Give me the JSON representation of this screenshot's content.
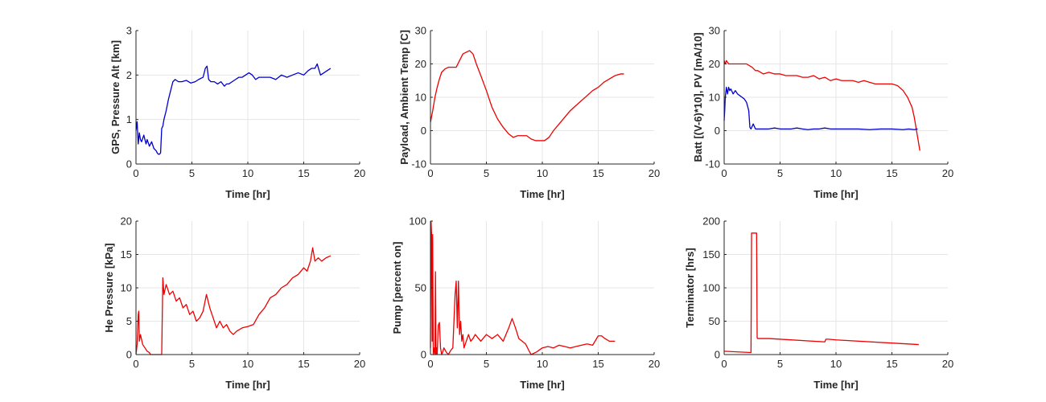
{
  "figure": {
    "charts": [
      {
        "id": "gps_alt",
        "ylabel": "GPS, Pressure Alt [km]",
        "xlabel": "Time [hr]"
      },
      {
        "id": "payload_temp",
        "ylabel": "Payload, Ambient Temp [C]",
        "xlabel": "Time [hr]"
      },
      {
        "id": "batt_pv",
        "ylabel": "Batt [(V-6)*10], PV [mA/10]",
        "xlabel": "Time [hr]"
      },
      {
        "id": "he_pressure",
        "ylabel": "He Pressure [kPa]",
        "xlabel": "Time [hr]"
      },
      {
        "id": "pump",
        "ylabel": "Pump [percent on]",
        "xlabel": "Time [hr]"
      },
      {
        "id": "terminator",
        "ylabel": "Terminator [hrs]",
        "xlabel": "Time [hr]"
      }
    ]
  },
  "chart_data": [
    {
      "type": "line",
      "xlabel": "Time [hr]",
      "ylabel": "GPS, Pressure Alt [km]",
      "xlim": [
        0,
        20
      ],
      "ylim": [
        0,
        3
      ],
      "xticks": [
        0,
        5,
        10,
        15,
        20
      ],
      "yticks": [
        0,
        1,
        2,
        3
      ],
      "grid": true,
      "series": [
        {
          "color": "#0000cc",
          "x": [
            0,
            0.1,
            0.2,
            0.3,
            0.4,
            0.5,
            0.7,
            0.9,
            1.0,
            1.2,
            1.4,
            1.6,
            1.8,
            1.9,
            2.0,
            2.1,
            2.2,
            2.3,
            2.4,
            2.5,
            2.7,
            2.9,
            3.1,
            3.3,
            3.5,
            3.8,
            4.1,
            4.5,
            4.9,
            5.3,
            5.6,
            6.0,
            6.2,
            6.35,
            6.5,
            6.7,
            7.0,
            7.3,
            7.6,
            7.9,
            8.1,
            8.3,
            8.6,
            8.9,
            9.2,
            9.5,
            9.8,
            10.1,
            10.4,
            10.7,
            11.0,
            11.5,
            12.0,
            12.5,
            13.0,
            13.5,
            14.0,
            14.5,
            15.0,
            15.4,
            15.7,
            16.0,
            16.2,
            16.5,
            16.8,
            17.1,
            17.4
          ],
          "y": [
            0.75,
            0.95,
            0.45,
            0.7,
            0.55,
            0.5,
            0.65,
            0.45,
            0.55,
            0.4,
            0.5,
            0.35,
            0.3,
            0.25,
            0.22,
            0.22,
            0.25,
            0.8,
            0.85,
            1.0,
            1.2,
            1.45,
            1.65,
            1.85,
            1.9,
            1.85,
            1.85,
            1.88,
            1.82,
            1.85,
            1.9,
            1.95,
            2.15,
            2.2,
            1.9,
            1.85,
            1.85,
            1.8,
            1.85,
            1.75,
            1.8,
            1.8,
            1.85,
            1.9,
            1.95,
            1.95,
            2.0,
            2.05,
            2.0,
            1.9,
            1.95,
            1.95,
            1.95,
            1.9,
            2.0,
            1.95,
            2.0,
            2.05,
            2.0,
            2.1,
            2.15,
            2.15,
            2.25,
            2.0,
            2.05,
            2.1,
            2.15
          ]
        }
      ]
    },
    {
      "type": "line",
      "xlabel": "Time [hr]",
      "ylabel": "Payload, Ambient Temp [C]",
      "xlim": [
        0,
        20
      ],
      "ylim": [
        -10,
        30
      ],
      "xticks": [
        0,
        5,
        10,
        15,
        20
      ],
      "yticks": [
        -10,
        0,
        10,
        20,
        30
      ],
      "grid": true,
      "series": [
        {
          "color": "#ee0000",
          "x": [
            0,
            0.2,
            0.4,
            0.6,
            0.8,
            1.0,
            1.3,
            1.6,
            2.0,
            2.3,
            2.6,
            2.9,
            3.2,
            3.5,
            3.8,
            4.1,
            4.5,
            5.0,
            5.5,
            6.0,
            6.5,
            7.0,
            7.4,
            7.8,
            8.2,
            8.6,
            9.0,
            9.4,
            9.8,
            10.2,
            10.6,
            11.0,
            11.5,
            12.0,
            12.5,
            13.0,
            13.5,
            14.0,
            14.5,
            15.0,
            15.5,
            16.0,
            16.5,
            17.0,
            17.3
          ],
          "y": [
            2.5,
            6,
            10,
            13,
            15.5,
            17.5,
            18.5,
            19,
            19,
            19,
            21,
            23,
            23.5,
            24,
            23,
            20,
            16.5,
            12,
            7,
            3.5,
            1,
            -1,
            -2,
            -1.5,
            -1.5,
            -1.5,
            -2.5,
            -3,
            -3,
            -3,
            -2,
            0,
            2,
            4,
            6,
            7.5,
            9,
            10.5,
            12,
            13,
            14.5,
            15.5,
            16.5,
            17,
            17
          ]
        }
      ]
    },
    {
      "type": "line",
      "xlabel": "Time [hr]",
      "ylabel": "Batt [(V-6)*10], PV [mA/10]",
      "xlim": [
        0,
        20
      ],
      "ylim": [
        -10,
        30
      ],
      "xticks": [
        0,
        5,
        10,
        15,
        20
      ],
      "yticks": [
        -10,
        0,
        10,
        20,
        30
      ],
      "grid": true,
      "series": [
        {
          "color": "#ee0000",
          "x": [
            0,
            0.1,
            0.2,
            0.4,
            0.6,
            1.0,
            1.5,
            2.0,
            2.5,
            2.8,
            3.0,
            3.5,
            4.0,
            4.5,
            5.0,
            5.5,
            6.0,
            6.5,
            7.0,
            7.5,
            8.0,
            8.5,
            9.0,
            9.5,
            10.0,
            10.5,
            11.0,
            11.5,
            12.0,
            12.5,
            13.0,
            13.5,
            14.0,
            14.5,
            15.0,
            15.5,
            16.0,
            16.4,
            16.8,
            17.0,
            17.2,
            17.4,
            17.5
          ],
          "y": [
            21,
            20,
            21,
            20,
            20,
            20,
            20,
            20,
            19,
            18,
            18,
            17,
            17.5,
            17,
            17,
            16.5,
            16.5,
            16.5,
            16,
            16,
            16.5,
            15.5,
            16,
            15,
            15.5,
            15,
            15,
            15,
            14.5,
            15,
            14.5,
            14,
            14,
            14,
            14,
            13.5,
            12,
            10,
            7,
            4,
            0,
            -4,
            -6
          ]
        },
        {
          "color": "#0000cc",
          "x": [
            0,
            0.05,
            0.1,
            0.2,
            0.3,
            0.4,
            0.5,
            0.6,
            0.8,
            1.0,
            1.2,
            1.4,
            1.6,
            1.8,
            2.0,
            2.2,
            2.3,
            2.4,
            2.6,
            2.8,
            3.0,
            3.5,
            4.0,
            4.5,
            5.0,
            5.5,
            6.0,
            6.5,
            7.0,
            7.5,
            8.0,
            8.5,
            9.0,
            9.5,
            10.0,
            11.0,
            12.0,
            13.0,
            14.0,
            15.0,
            16.0,
            16.5,
            17.0,
            17.3
          ],
          "y": [
            3,
            6,
            10,
            13,
            11,
            13,
            12,
            12.5,
            11,
            12,
            11,
            10.5,
            10,
            9.5,
            8.5,
            6,
            1,
            0.5,
            2,
            0.5,
            0.5,
            0.5,
            0.5,
            0.8,
            0.5,
            0.5,
            0.5,
            0.8,
            0.5,
            0.3,
            0.5,
            0.5,
            0.8,
            0.5,
            0.5,
            0.5,
            0.5,
            0.3,
            0.5,
            0.5,
            0.3,
            0.5,
            0.3,
            0.5
          ]
        }
      ]
    },
    {
      "type": "line",
      "xlabel": "Time [hr]",
      "ylabel": "He Pressure [kPa]",
      "xlim": [
        0,
        20
      ],
      "ylim": [
        0,
        20
      ],
      "xticks": [
        0,
        5,
        10,
        15,
        20
      ],
      "yticks": [
        0,
        5,
        10,
        15,
        20
      ],
      "grid": true,
      "series": [
        {
          "color": "#ee0000",
          "x": [
            0,
            0.1,
            0.2,
            0.25,
            0.3,
            0.4,
            0.6,
            0.8,
            1.0,
            1.2,
            1.3,
            2.0,
            2.3,
            2.4,
            2.5,
            2.7,
            3.0,
            3.3,
            3.6,
            3.9,
            4.2,
            4.5,
            4.8,
            5.1,
            5.4,
            5.7,
            6.0,
            6.3,
            6.6,
            6.9,
            7.2,
            7.5,
            7.8,
            8.1,
            8.4,
            8.7,
            9.0,
            9.5,
            10.0,
            10.5,
            11.0,
            11.5,
            12.0,
            12.5,
            13.0,
            13.5,
            14.0,
            14.5,
            15.0,
            15.3,
            15.6,
            15.8,
            16.0,
            16.3,
            16.6,
            17.0,
            17.4
          ],
          "y": [
            0,
            1.5,
            6,
            6.5,
            2,
            3,
            1.5,
            1,
            0.5,
            0.3,
            0,
            0,
            0,
            11.5,
            9,
            10.5,
            9,
            9.5,
            8,
            8.5,
            7,
            7.5,
            6,
            6.5,
            5,
            5.5,
            6.5,
            9,
            7,
            5.5,
            4,
            5,
            4,
            4.5,
            3.5,
            3,
            3.5,
            4,
            4.2,
            4.5,
            6,
            7,
            8.5,
            9,
            10,
            10.5,
            11.5,
            12,
            13,
            12.5,
            14,
            16,
            14,
            14.5,
            14,
            14.5,
            14.8
          ]
        }
      ]
    },
    {
      "type": "line",
      "xlabel": "Time [hr]",
      "ylabel": "Pump [percent on]",
      "xlim": [
        0,
        20
      ],
      "ylim": [
        0,
        100
      ],
      "xticks": [
        0,
        5,
        10,
        15,
        20
      ],
      "yticks": [
        0,
        50,
        100
      ],
      "grid": true,
      "series": [
        {
          "color": "#ee0000",
          "x": [
            0,
            0.05,
            0.1,
            0.15,
            0.2,
            0.25,
            0.3,
            0.35,
            0.4,
            0.45,
            0.5,
            0.55,
            0.6,
            0.7,
            0.8,
            0.9,
            1.0,
            1.1,
            1.2,
            1.4,
            1.6,
            1.8,
            2.0,
            2.2,
            2.3,
            2.4,
            2.5,
            2.6,
            2.7,
            2.8,
            2.9,
            3.0,
            3.2,
            3.4,
            3.6,
            3.8,
            4.0,
            4.5,
            5.0,
            5.5,
            6.0,
            6.5,
            7.0,
            7.3,
            7.6,
            7.9,
            8.2,
            8.5,
            8.8,
            9.0,
            9.5,
            10.0,
            10.5,
            11.0,
            11.5,
            12.0,
            12.5,
            13.0,
            13.5,
            14.0,
            14.5,
            15.0,
            15.3,
            15.6,
            16.0,
            16.5
          ],
          "y": [
            5,
            100,
            90,
            10,
            90,
            0,
            2,
            5,
            0,
            62,
            0,
            5,
            0,
            22,
            24,
            5,
            0,
            2,
            5,
            2,
            0,
            3,
            5,
            45,
            55,
            20,
            55,
            15,
            25,
            10,
            15,
            5,
            10,
            15,
            10,
            12,
            15,
            10,
            15,
            12,
            15,
            10,
            20,
            27,
            20,
            12,
            10,
            8,
            3,
            0,
            2,
            5,
            6,
            5,
            7,
            6,
            5,
            6,
            7,
            8,
            7,
            14,
            14,
            12,
            10,
            10
          ]
        }
      ]
    },
    {
      "type": "line",
      "xlabel": "Time [hr]",
      "ylabel": "Terminator [hrs]",
      "xlim": [
        0,
        20
      ],
      "ylim": [
        0,
        200
      ],
      "xticks": [
        0,
        5,
        10,
        15,
        20
      ],
      "yticks": [
        0,
        50,
        100,
        150,
        200
      ],
      "grid": true,
      "series": [
        {
          "color": "#ee0000",
          "x": [
            0,
            2.4,
            2.45,
            2.5,
            2.9,
            2.95,
            3.0,
            4.0,
            9.0,
            9.1,
            9.3,
            10.0,
            17.4
          ],
          "y": [
            5,
            3,
            182,
            182,
            182,
            25,
            24,
            24,
            19,
            23,
            23,
            22,
            15
          ]
        }
      ]
    }
  ]
}
